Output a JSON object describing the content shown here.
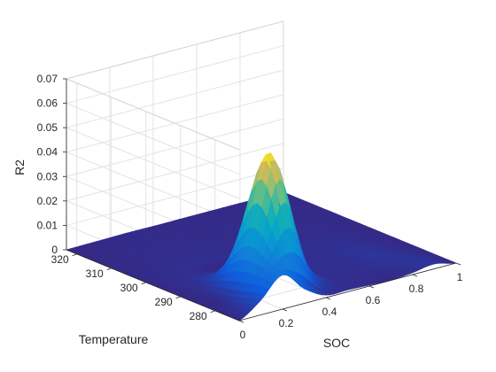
{
  "chart_data": {
    "type": "surface",
    "title": "",
    "xlabel": "SOC",
    "ylabel": "Temperature",
    "zlabel": "R2",
    "xlim": [
      0,
      1
    ],
    "ylim": [
      273,
      323
    ],
    "zlim": [
      0,
      0.07
    ],
    "grid": true,
    "colormap": "parula",
    "x_ticks": [
      0,
      0.2,
      0.4,
      0.6,
      0.8,
      1
    ],
    "x_tick_labels": [
      "0",
      "0.2",
      "0.4",
      "0.6",
      "0.8",
      "1"
    ],
    "y_ticks": [
      280,
      290,
      300,
      310,
      320
    ],
    "y_tick_labels": [
      "280",
      "290",
      "300",
      "310",
      "320"
    ],
    "z_ticks": [
      0,
      0.01,
      0.02,
      0.03,
      0.04,
      0.05,
      0.06,
      0.07
    ],
    "z_tick_labels": [
      "0",
      "0.01",
      "0.02",
      "0.03",
      "0.04",
      "0.05",
      "0.06",
      "0.07"
    ],
    "temperature": [
      273,
      283,
      293,
      303,
      313,
      323
    ],
    "soc": [
      0,
      0.1,
      0.2,
      0.3,
      0.4,
      0.5,
      0.6,
      0.7,
      0.8,
      0.9,
      1
    ],
    "r2": [
      [
        0.0,
        0.006,
        0.014,
        0.006,
        0.001,
        0.0008,
        0.0004,
        0.0001,
        0.0008,
        0.002,
        0.0
      ],
      [
        0.0,
        0.002,
        0.02,
        0.056,
        0.016,
        0.002,
        0.001,
        0.001,
        0.002,
        0.001,
        0.0
      ],
      [
        0.0,
        0.001,
        0.003,
        0.004,
        0.002,
        0.001,
        0.0008,
        0.001,
        0.001,
        0.0005,
        0.0
      ],
      [
        0.0,
        0.0004,
        0.0008,
        0.001,
        0.0008,
        0.0006,
        0.0005,
        0.0006,
        0.0005,
        0.0003,
        0.0
      ],
      [
        0.0,
        0.0002,
        0.0004,
        0.0005,
        0.0004,
        0.0003,
        0.0003,
        0.0003,
        0.0003,
        0.0002,
        0.0
      ],
      [
        0.0,
        0.0001,
        0.0002,
        0.0003,
        0.0002,
        0.0002,
        0.0002,
        0.0002,
        0.0002,
        0.0001,
        0.0
      ]
    ]
  }
}
